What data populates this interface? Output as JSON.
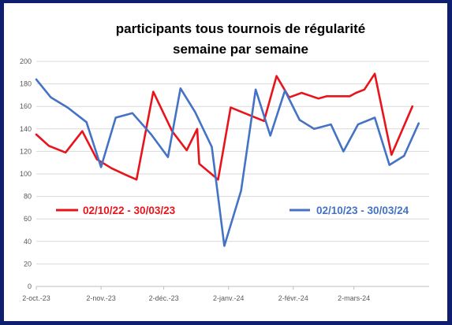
{
  "chart_data": {
    "type": "line",
    "title": [
      "participants tous tournois de régularité",
      "semaine par semaine"
    ],
    "ylim": [
      0,
      200
    ],
    "yticks": [
      0,
      20,
      40,
      60,
      80,
      100,
      120,
      140,
      160,
      180,
      200
    ],
    "xlim": [
      "2023-10-02",
      "2024-04-07"
    ],
    "xticks": [
      {
        "date": "2023-10-02",
        "label": "2-oct.-23"
      },
      {
        "date": "2023-11-02",
        "label": "2-nov.-23"
      },
      {
        "date": "2023-12-02",
        "label": "2-déc.-23"
      },
      {
        "date": "2024-01-02",
        "label": "2-janv.-24"
      },
      {
        "date": "2024-02-02",
        "label": "2-févr.-24"
      },
      {
        "date": "2024-03-02",
        "label": "2-mars-24"
      }
    ],
    "grid": true,
    "series": [
      {
        "name": "02/10/22 - 30/03/23",
        "color": "#e8141b",
        "points": [
          [
            "2023-10-02",
            135
          ],
          [
            "2023-10-08",
            125
          ],
          [
            "2023-10-16",
            119
          ],
          [
            "2023-10-24",
            138
          ],
          [
            "2023-10-31",
            113
          ],
          [
            "2023-11-07",
            105
          ],
          [
            "2023-11-14",
            99
          ],
          [
            "2023-11-19",
            95
          ],
          [
            "2023-11-27",
            173
          ],
          [
            "2023-12-06",
            138
          ],
          [
            "2023-12-13",
            121
          ],
          [
            "2023-12-18",
            140
          ],
          [
            "2023-12-19",
            109
          ],
          [
            "2023-12-28",
            95
          ],
          [
            "2024-01-03",
            159
          ],
          [
            "2024-01-11",
            153
          ],
          [
            "2024-01-19",
            147
          ],
          [
            "2024-01-25",
            187
          ],
          [
            "2024-01-31",
            168
          ],
          [
            "2024-02-06",
            172
          ],
          [
            "2024-02-14",
            167
          ],
          [
            "2024-02-18",
            169
          ],
          [
            "2024-02-23",
            169
          ],
          [
            "2024-02-29",
            169
          ],
          [
            "2024-03-03",
            172
          ],
          [
            "2024-03-07",
            175
          ],
          [
            "2024-03-12",
            189
          ],
          [
            "2024-03-20",
            117
          ],
          [
            "2024-03-30",
            160
          ]
        ]
      },
      {
        "name": "02/10/23 - 30/03/24",
        "color": "#4472c4",
        "points": [
          [
            "2023-10-02",
            184
          ],
          [
            "2023-10-09",
            168
          ],
          [
            "2023-10-17",
            159
          ],
          [
            "2023-10-26",
            146
          ],
          [
            "2023-11-02",
            106
          ],
          [
            "2023-11-09",
            150
          ],
          [
            "2023-11-17",
            154
          ],
          [
            "2023-11-26",
            135
          ],
          [
            "2023-12-04",
            115
          ],
          [
            "2023-12-10",
            176
          ],
          [
            "2023-12-17",
            155
          ],
          [
            "2023-12-25",
            124
          ],
          [
            "2023-12-31",
            36
          ],
          [
            "2024-01-08",
            85
          ],
          [
            "2024-01-15",
            175
          ],
          [
            "2024-01-22",
            134
          ],
          [
            "2024-01-29",
            174
          ],
          [
            "2024-02-05",
            148
          ],
          [
            "2024-02-12",
            140
          ],
          [
            "2024-02-20",
            144
          ],
          [
            "2024-02-26",
            120
          ],
          [
            "2024-03-04",
            144
          ],
          [
            "2024-03-12",
            150
          ],
          [
            "2024-03-19",
            108
          ],
          [
            "2024-03-26",
            116
          ],
          [
            "2024-04-02",
            145
          ]
        ]
      }
    ],
    "legend": [
      {
        "series": 0,
        "placement": "left"
      },
      {
        "series": 1,
        "placement": "right"
      }
    ]
  }
}
